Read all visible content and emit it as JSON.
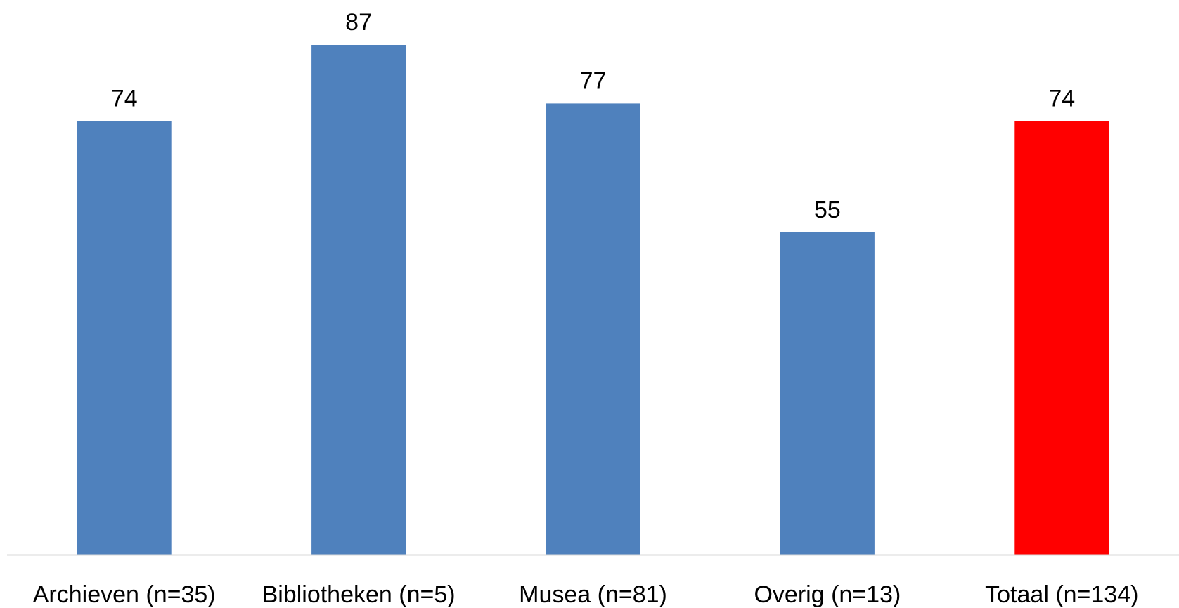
{
  "chart_data": {
    "type": "bar",
    "categories": [
      "Archieven (n=35)",
      "Bibliotheken (n=5)",
      "Musea (n=81)",
      "Overig (n=13)",
      "Totaal (n=134)"
    ],
    "values": [
      74,
      87,
      77,
      55,
      74
    ],
    "data_labels": [
      "74",
      "87",
      "77",
      "55",
      "74"
    ],
    "bar_colors": [
      "#4F81BD",
      "#4F81BD",
      "#4F81BD",
      "#4F81BD",
      "#FF0000"
    ],
    "ylim": [
      0,
      87
    ],
    "grid": false,
    "axis_line_color": "#D9D9D9"
  }
}
